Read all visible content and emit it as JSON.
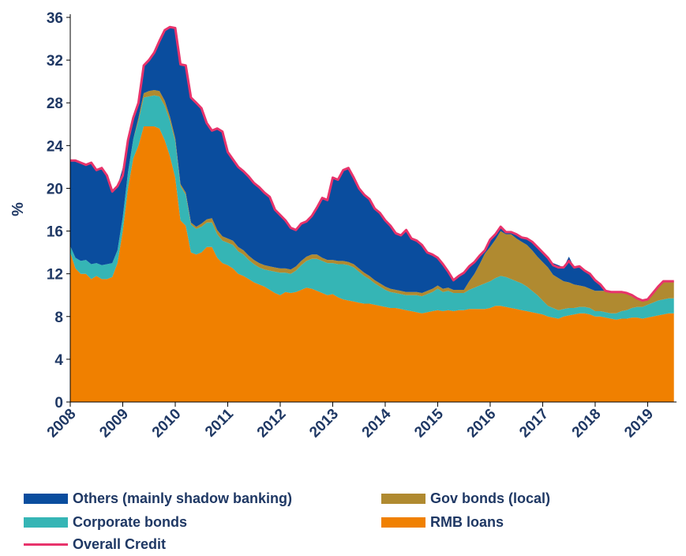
{
  "chart_data": {
    "type": "area",
    "ylabel": "%",
    "ylim": [
      0,
      36
    ],
    "yticks": [
      "0",
      "4",
      "8",
      "12",
      "16",
      "20",
      "24",
      "28",
      "32",
      "36"
    ],
    "xlim": [
      2008,
      2019.55
    ],
    "xticks": [
      "2008",
      "2009",
      "2010",
      "2011",
      "2012",
      "2013",
      "2014",
      "2015",
      "2016",
      "2017",
      "2018",
      "2019"
    ],
    "legend_position": "bottom",
    "x": [
      2008.0,
      2008.1,
      2008.2,
      2008.3,
      2008.4,
      2008.5,
      2008.6,
      2008.7,
      2008.8,
      2008.9,
      2009.0,
      2009.1,
      2009.2,
      2009.3,
      2009.4,
      2009.5,
      2009.6,
      2009.7,
      2009.8,
      2009.9,
      2010.0,
      2010.1,
      2010.2,
      2010.3,
      2010.4,
      2010.5,
      2010.6,
      2010.7,
      2010.8,
      2010.9,
      2011.0,
      2011.1,
      2011.2,
      2011.3,
      2011.4,
      2011.5,
      2011.6,
      2011.7,
      2011.8,
      2011.9,
      2012.0,
      2012.1,
      2012.2,
      2012.3,
      2012.4,
      2012.5,
      2012.6,
      2012.7,
      2012.8,
      2012.9,
      2013.0,
      2013.1,
      2013.2,
      2013.3,
      2013.4,
      2013.5,
      2013.6,
      2013.7,
      2013.8,
      2013.9,
      2014.0,
      2014.1,
      2014.2,
      2014.3,
      2014.4,
      2014.5,
      2014.6,
      2014.7,
      2014.8,
      2014.9,
      2015.0,
      2015.1,
      2015.2,
      2015.3,
      2015.4,
      2015.5,
      2015.6,
      2015.7,
      2015.8,
      2015.9,
      2016.0,
      2016.1,
      2016.2,
      2016.3,
      2016.4,
      2016.5,
      2016.6,
      2016.7,
      2016.8,
      2016.9,
      2017.0,
      2017.1,
      2017.2,
      2017.3,
      2017.4,
      2017.5,
      2017.6,
      2017.7,
      2017.8,
      2017.9,
      2018.0,
      2018.1,
      2018.2,
      2018.3,
      2018.4,
      2018.5,
      2018.6,
      2018.7,
      2018.8,
      2018.9,
      2019.0,
      2019.1,
      2019.2,
      2019.3,
      2019.4,
      2019.5
    ],
    "series": [
      {
        "name": "RMB loans",
        "color": "#f08000",
        "values": [
          14.0,
          12.5,
          12.0,
          12.0,
          11.5,
          11.8,
          11.5,
          11.5,
          11.7,
          13.0,
          16.0,
          20.0,
          22.8,
          24.0,
          25.8,
          25.8,
          25.8,
          25.6,
          24.5,
          23.0,
          21.0,
          17.0,
          16.5,
          14.0,
          13.8,
          14.0,
          14.5,
          14.5,
          13.5,
          13.0,
          12.8,
          12.5,
          12.0,
          11.8,
          11.5,
          11.2,
          11.0,
          10.8,
          10.5,
          10.2,
          10.0,
          10.3,
          10.2,
          10.3,
          10.5,
          10.7,
          10.6,
          10.4,
          10.2,
          10.0,
          10.1,
          9.8,
          9.6,
          9.5,
          9.4,
          9.3,
          9.2,
          9.2,
          9.1,
          9.0,
          8.9,
          8.8,
          8.8,
          8.7,
          8.6,
          8.5,
          8.4,
          8.3,
          8.4,
          8.5,
          8.6,
          8.5,
          8.6,
          8.5,
          8.6,
          8.6,
          8.7,
          8.7,
          8.7,
          8.7,
          8.8,
          9.0,
          9.0,
          8.9,
          8.8,
          8.7,
          8.6,
          8.5,
          8.4,
          8.3,
          8.2,
          8.0,
          7.9,
          7.8,
          8.0,
          8.1,
          8.2,
          8.3,
          8.3,
          8.2,
          8.0,
          8.0,
          7.9,
          7.8,
          7.7,
          7.8,
          7.8,
          7.9,
          7.9,
          7.8,
          7.9,
          8.0,
          8.1,
          8.2,
          8.3,
          8.3
        ]
      },
      {
        "name": "Corporate bonds",
        "color": "#35b5b5",
        "values": [
          0.6,
          1.0,
          1.2,
          1.3,
          1.4,
          1.2,
          1.3,
          1.4,
          1.3,
          1.2,
          1.3,
          1.5,
          1.8,
          2.3,
          2.7,
          2.8,
          2.9,
          3.0,
          3.2,
          3.3,
          3.4,
          3.2,
          2.9,
          2.6,
          2.4,
          2.4,
          2.3,
          2.3,
          2.2,
          2.1,
          2.1,
          2.2,
          2.1,
          2.0,
          1.8,
          1.7,
          1.6,
          1.6,
          1.8,
          2.0,
          2.1,
          1.8,
          1.8,
          2.0,
          2.3,
          2.5,
          2.8,
          3.0,
          3.0,
          3.0,
          2.9,
          3.1,
          3.3,
          3.3,
          3.2,
          2.9,
          2.6,
          2.3,
          2.0,
          1.8,
          1.6,
          1.5,
          1.4,
          1.4,
          1.4,
          1.5,
          1.6,
          1.6,
          1.7,
          1.8,
          2.0,
          1.8,
          1.8,
          1.7,
          1.6,
          1.6,
          1.8,
          2.0,
          2.2,
          2.4,
          2.5,
          2.6,
          2.8,
          2.8,
          2.7,
          2.6,
          2.5,
          2.3,
          2.0,
          1.7,
          1.3,
          1.0,
          0.9,
          0.8,
          0.7,
          0.7,
          0.6,
          0.6,
          0.6,
          0.6,
          0.5,
          0.5,
          0.5,
          0.5,
          0.6,
          0.7,
          0.8,
          0.9,
          1.0,
          1.1,
          1.2,
          1.3,
          1.4,
          1.4,
          1.4,
          1.4
        ]
      },
      {
        "name": "Gov bonds (local)",
        "color": "#b08a30",
        "values": [
          0.0,
          0.0,
          0.0,
          0.0,
          0.0,
          0.0,
          0.0,
          0.0,
          0.0,
          0.0,
          0.0,
          0.0,
          0.0,
          0.3,
          0.4,
          0.5,
          0.5,
          0.5,
          0.5,
          0.4,
          0.3,
          0.2,
          0.2,
          0.2,
          0.2,
          0.3,
          0.3,
          0.4,
          0.4,
          0.4,
          0.4,
          0.4,
          0.4,
          0.4,
          0.4,
          0.4,
          0.4,
          0.4,
          0.4,
          0.4,
          0.4,
          0.4,
          0.4,
          0.4,
          0.4,
          0.4,
          0.4,
          0.4,
          0.3,
          0.3,
          0.3,
          0.3,
          0.3,
          0.3,
          0.3,
          0.3,
          0.3,
          0.3,
          0.3,
          0.3,
          0.3,
          0.3,
          0.3,
          0.3,
          0.3,
          0.3,
          0.3,
          0.3,
          0.3,
          0.3,
          0.3,
          0.3,
          0.3,
          0.3,
          0.3,
          0.3,
          0.8,
          1.3,
          2.0,
          2.8,
          3.2,
          3.6,
          4.2,
          4.0,
          4.2,
          4.0,
          3.9,
          3.9,
          3.8,
          3.6,
          3.6,
          3.6,
          3.1,
          3.0,
          2.6,
          2.4,
          2.2,
          2.0,
          1.9,
          1.8,
          1.9,
          1.9,
          2.0,
          2.0,
          2.0,
          1.8,
          1.6,
          1.2,
          0.8,
          0.6,
          0.5,
          0.9,
          1.3,
          1.7,
          1.6,
          1.6
        ]
      },
      {
        "name": "Others (mainly shadow banking)",
        "color": "#0a4d9e",
        "values": [
          8.0,
          9.1,
          9.2,
          8.9,
          9.5,
          8.7,
          9.1,
          8.3,
          6.7,
          6.0,
          4.6,
          3.0,
          2.0,
          1.4,
          2.6,
          2.9,
          3.5,
          4.7,
          6.6,
          8.4,
          10.3,
          11.2,
          11.9,
          11.7,
          11.6,
          10.8,
          9.0,
          8.2,
          9.5,
          9.8,
          8.1,
          7.6,
          7.5,
          7.4,
          7.4,
          7.2,
          7.1,
          6.8,
          6.5,
          5.4,
          5.0,
          4.5,
          3.9,
          3.4,
          3.5,
          3.3,
          3.6,
          4.4,
          5.6,
          5.6,
          7.7,
          7.6,
          8.5,
          8.8,
          8.1,
          7.5,
          7.3,
          7.2,
          6.7,
          6.6,
          6.2,
          5.9,
          5.3,
          5.2,
          5.8,
          5.0,
          4.8,
          4.5,
          3.6,
          3.2,
          2.6,
          2.3,
          1.5,
          0.9,
          1.3,
          1.6,
          1.4,
          1.1,
          0.8,
          0.4,
          0.7,
          0.5,
          0.4,
          0.2,
          0.2,
          0.4,
          0.4,
          0.6,
          0.8,
          0.9,
          0.9,
          0.9,
          1.1,
          1.2,
          1.3,
          2.4,
          1.6,
          1.8,
          1.5,
          1.4,
          1.0,
          0.6,
          0.0,
          0.0,
          0.0,
          0.0,
          0.0,
          0.0,
          0.0,
          0.0,
          0.0,
          0.0,
          0.0,
          0.0,
          0.0,
          0.0
        ]
      },
      {
        "name": "Overall Credit",
        "color": "#e8336b",
        "type": "line",
        "values": [
          22.6,
          22.6,
          22.4,
          22.2,
          22.4,
          21.7,
          21.9,
          21.2,
          19.7,
          20.2,
          21.2,
          24.5,
          26.6,
          28.0,
          31.5,
          32.0,
          32.7,
          33.8,
          34.8,
          35.1,
          35.0,
          31.6,
          31.5,
          28.5,
          28.0,
          27.5,
          26.1,
          25.4,
          25.6,
          25.3,
          23.4,
          22.7,
          22.0,
          21.6,
          21.1,
          20.5,
          20.1,
          19.6,
          19.2,
          18.0,
          17.5,
          17.0,
          16.3,
          16.1,
          16.7,
          16.9,
          17.4,
          18.2,
          19.1,
          18.9,
          21.0,
          20.8,
          21.7,
          21.9,
          21.0,
          20.0,
          19.4,
          19.0,
          18.1,
          17.7,
          17.0,
          16.5,
          15.8,
          15.6,
          16.1,
          15.3,
          15.1,
          14.7,
          14.0,
          13.8,
          13.5,
          12.9,
          12.2,
          11.4,
          11.8,
          12.1,
          12.7,
          13.1,
          13.7,
          14.2,
          15.2,
          15.7,
          16.4,
          15.9,
          15.9,
          15.7,
          15.4,
          15.3,
          15.0,
          14.5,
          14.0,
          13.5,
          12.8,
          12.6,
          12.6,
          13.2,
          12.6,
          12.7,
          12.3,
          12.0,
          11.4,
          11.0,
          10.4,
          10.3,
          10.3,
          10.3,
          10.2,
          10.0,
          9.7,
          9.5,
          9.6,
          10.2,
          10.8,
          11.3,
          11.3,
          11.3
        ]
      }
    ]
  },
  "legend": {
    "others": "Others (mainly shadow banking)",
    "gov": "Gov bonds (local)",
    "corp": "Corporate bonds",
    "rmb": "RMB loans",
    "overall": "Overall Credit"
  }
}
